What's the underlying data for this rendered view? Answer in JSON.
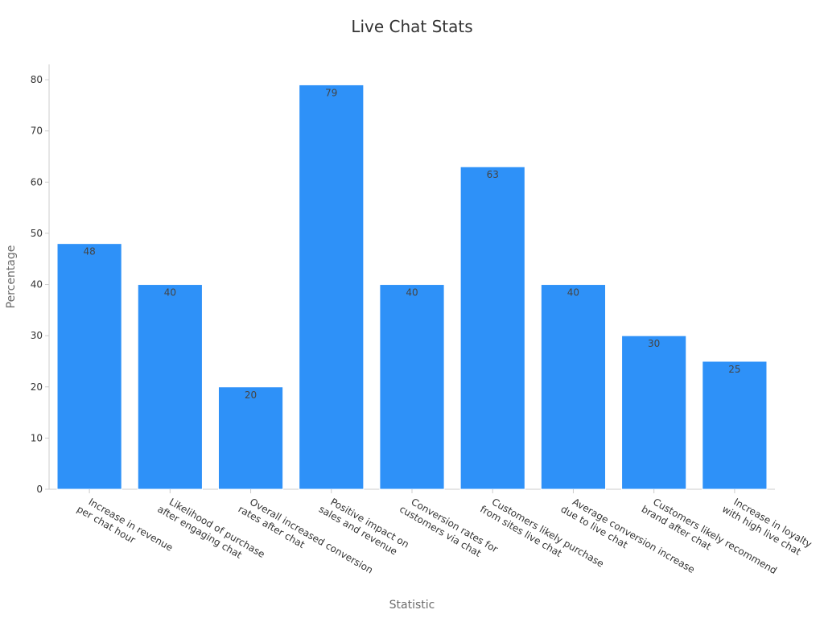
{
  "colors": {
    "bar": "#2e91f8",
    "text": "#333333",
    "axis": "#cccccc"
  },
  "chart_data": {
    "type": "bar",
    "title": "Live Chat Stats",
    "xlabel": "Statistic",
    "ylabel": "Percentage",
    "ylim": [
      0,
      83
    ],
    "yticks": [
      0,
      10,
      20,
      30,
      40,
      50,
      60,
      70,
      80
    ],
    "grid": false,
    "categories": [
      [
        "Increase in revenue",
        "per chat hour"
      ],
      [
        "Likelihood of purchase",
        "after engaging chat"
      ],
      [
        "Overall increased conversion",
        "rates after chat"
      ],
      [
        "Positive impact on",
        "sales and revenue"
      ],
      [
        "Conversion rates for",
        "customers via chat"
      ],
      [
        "Customers likely purchase",
        "from sites live chat"
      ],
      [
        "Average conversion increase",
        "due to live chat"
      ],
      [
        "Customers likely recommend",
        "brand after chat"
      ],
      [
        "Increase in loyalty",
        "with high live chat"
      ]
    ],
    "values": [
      48,
      40,
      20,
      79,
      40,
      63,
      40,
      30,
      25
    ]
  }
}
